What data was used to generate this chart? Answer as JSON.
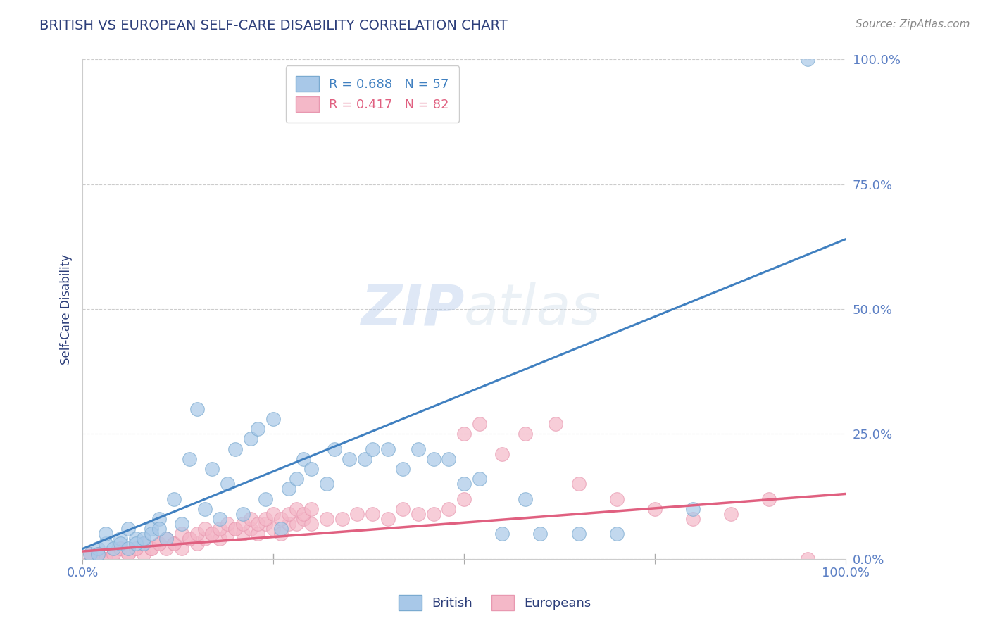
{
  "title": "BRITISH VS EUROPEAN SELF-CARE DISABILITY CORRELATION CHART",
  "source": "Source: ZipAtlas.com",
  "ylabel": "Self-Care Disability",
  "ytick_values": [
    0,
    25,
    50,
    75,
    100
  ],
  "xlim": [
    0,
    100
  ],
  "ylim": [
    0,
    100
  ],
  "title_color": "#2c3e7a",
  "tick_label_color": "#5b7fc4",
  "source_color": "#888888",
  "grid_color": "#cccccc",
  "british_color": "#a8c8e8",
  "european_color": "#f4b8c8",
  "british_scatter_edge": "#7aaad0",
  "european_scatter_edge": "#e898b0",
  "british_line_color": "#4080c0",
  "european_line_color": "#e06080",
  "british_R": 0.688,
  "british_N": 57,
  "european_R": 0.417,
  "european_N": 82,
  "watermark_zip": "ZIP",
  "watermark_atlas": "atlas",
  "british_scatter_x": [
    1,
    2,
    2,
    3,
    3,
    4,
    5,
    5,
    6,
    7,
    8,
    9,
    10,
    11,
    12,
    13,
    14,
    15,
    16,
    17,
    18,
    19,
    20,
    21,
    22,
    23,
    24,
    25,
    26,
    27,
    28,
    29,
    30,
    32,
    33,
    35,
    37,
    38,
    40,
    42,
    44,
    46,
    48,
    50,
    52,
    55,
    58,
    60,
    65,
    70,
    80,
    95,
    6,
    7,
    8,
    9,
    10
  ],
  "british_scatter_y": [
    1,
    2,
    1,
    3,
    5,
    2,
    4,
    3,
    6,
    4,
    3,
    6,
    8,
    4,
    12,
    7,
    20,
    30,
    10,
    18,
    8,
    15,
    22,
    9,
    24,
    26,
    12,
    28,
    6,
    14,
    16,
    20,
    18,
    15,
    22,
    20,
    20,
    22,
    22,
    18,
    22,
    20,
    20,
    15,
    16,
    5,
    12,
    5,
    5,
    5,
    10,
    100,
    2,
    3,
    4,
    5,
    6
  ],
  "european_scatter_x": [
    1,
    2,
    3,
    4,
    5,
    6,
    7,
    8,
    9,
    10,
    11,
    12,
    13,
    14,
    15,
    16,
    17,
    18,
    19,
    20,
    21,
    22,
    23,
    24,
    25,
    26,
    27,
    28,
    29,
    30,
    32,
    34,
    36,
    38,
    40,
    42,
    44,
    46,
    48,
    50,
    52,
    55,
    58,
    62,
    65,
    70,
    75,
    80,
    85,
    90,
    95,
    1,
    2,
    3,
    4,
    5,
    6,
    7,
    8,
    9,
    10,
    11,
    12,
    13,
    14,
    15,
    16,
    17,
    18,
    19,
    20,
    21,
    22,
    23,
    24,
    25,
    26,
    27,
    28,
    29,
    30,
    50
  ],
  "european_scatter_y": [
    0,
    1,
    0,
    1,
    2,
    1,
    2,
    1,
    2,
    3,
    2,
    3,
    2,
    4,
    3,
    4,
    5,
    4,
    5,
    6,
    5,
    6,
    5,
    7,
    6,
    5,
    7,
    7,
    8,
    7,
    8,
    8,
    9,
    9,
    8,
    10,
    9,
    9,
    10,
    25,
    27,
    21,
    25,
    27,
    15,
    12,
    10,
    8,
    9,
    12,
    0,
    1,
    1,
    0,
    1,
    2,
    1,
    2,
    3,
    2,
    3,
    4,
    3,
    5,
    4,
    5,
    6,
    5,
    6,
    7,
    6,
    7,
    8,
    7,
    8,
    9,
    8,
    9,
    10,
    9,
    10,
    12
  ],
  "british_line_x": [
    0,
    100
  ],
  "british_line_y": [
    2,
    64
  ],
  "european_line_x": [
    0,
    100
  ],
  "european_line_y": [
    1.5,
    13
  ]
}
